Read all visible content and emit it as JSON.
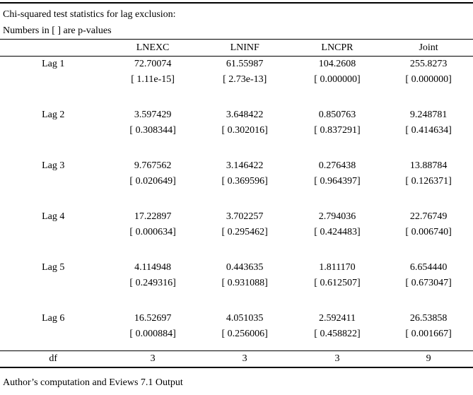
{
  "title": "Chi-squared test statistics for lag exclusion:",
  "subtitle": "Numbers in [ ] are p-values",
  "columns": [
    "",
    "LNEXC",
    "LNINF",
    "LNCPR",
    "Joint"
  ],
  "lags": [
    {
      "label": "Lag 1",
      "stats": [
        "72.70074",
        "61.55987",
        "104.2608",
        "255.8273"
      ],
      "pvalues": [
        "[ 1.11e-15]",
        "[ 2.73e-13]",
        "[ 0.000000]",
        "[ 0.000000]"
      ]
    },
    {
      "label": "Lag 2",
      "stats": [
        "3.597429",
        "3.648422",
        "0.850763",
        "9.248781"
      ],
      "pvalues": [
        "[ 0.308344]",
        "[ 0.302016]",
        "[ 0.837291]",
        "[ 0.414634]"
      ]
    },
    {
      "label": "Lag 3",
      "stats": [
        "9.767562",
        "3.146422",
        "0.276438",
        "13.88784"
      ],
      "pvalues": [
        "[ 0.020649]",
        "[ 0.369596]",
        "[ 0.964397]",
        "[ 0.126371]"
      ]
    },
    {
      "label": "Lag 4",
      "stats": [
        "17.22897",
        "3.702257",
        "2.794036",
        "22.76749"
      ],
      "pvalues": [
        "[ 0.000634]",
        "[ 0.295462]",
        "[ 0.424483]",
        "[ 0.006740]"
      ]
    },
    {
      "label": "Lag 5",
      "stats": [
        "4.114948",
        "0.443635",
        "1.811170",
        "6.654440"
      ],
      "pvalues": [
        "[ 0.249316]",
        "[ 0.931088]",
        "[ 0.612507]",
        "[ 0.673047]"
      ]
    },
    {
      "label": "Lag 6",
      "stats": [
        "16.52697",
        "4.051035",
        "2.592411",
        "26.53858"
      ],
      "pvalues": [
        "[ 0.000884]",
        "[ 0.256006]",
        "[ 0.458822]",
        "[ 0.001667]"
      ]
    }
  ],
  "df_row": {
    "label": "df",
    "values": [
      "3",
      "3",
      "3",
      "9"
    ]
  },
  "footer": "Author’s computation and Eviews 7.1 Output",
  "colors": {
    "text": "#000000",
    "background": "#ffffff",
    "rule": "#000000"
  }
}
